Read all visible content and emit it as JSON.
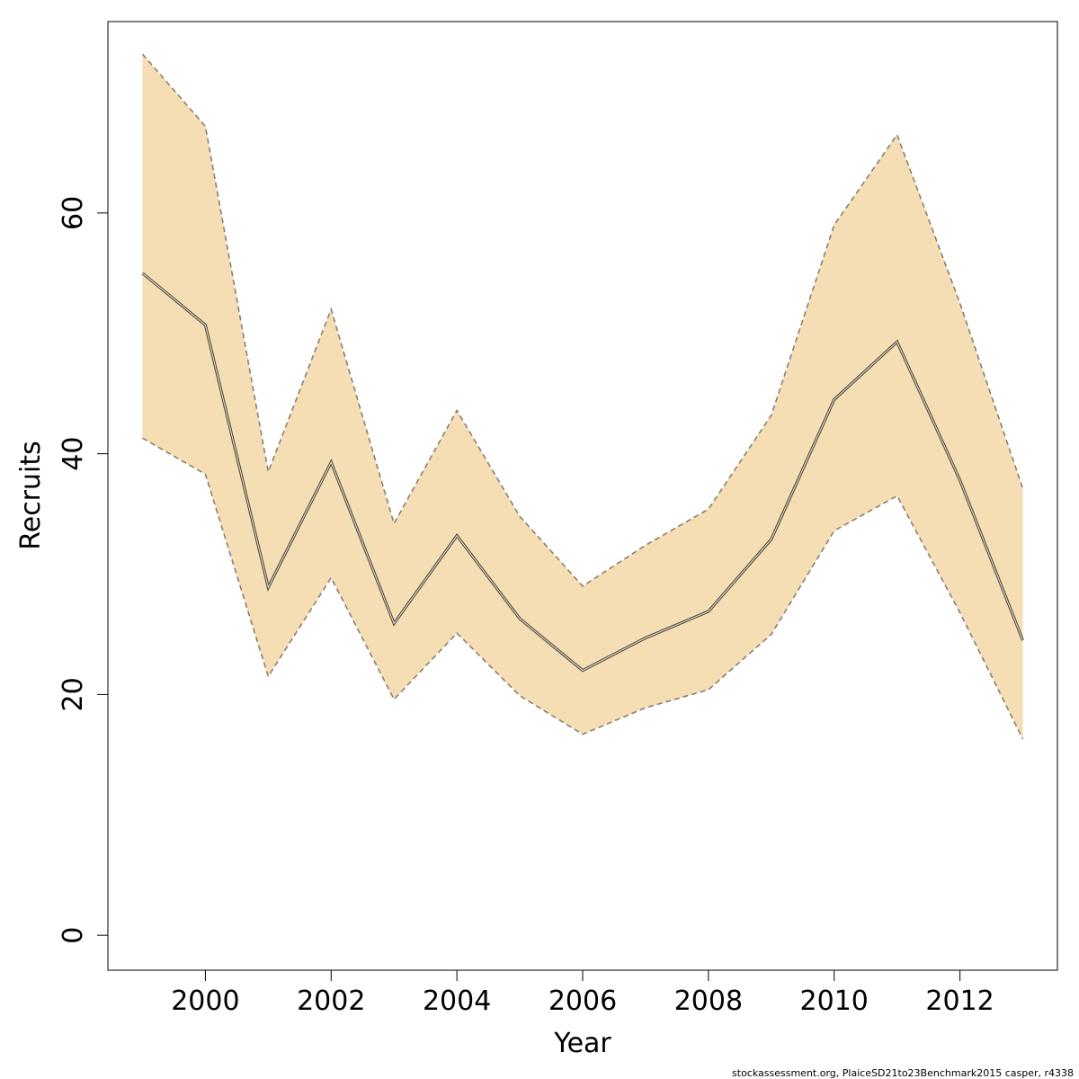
{
  "chart_data": {
    "type": "line",
    "title": "",
    "xlabel": "Year",
    "ylabel": "Recruits",
    "xlim": [
      1998.45,
      2013.55
    ],
    "ylim": [
      -2.9,
      75.9
    ],
    "x_ticks": [
      2000,
      2002,
      2004,
      2006,
      2008,
      2010,
      2012
    ],
    "y_ticks": [
      0,
      20,
      40,
      60
    ],
    "grid": false,
    "legend": "none",
    "x": [
      1999,
      2000,
      2001,
      2002,
      2003,
      2004,
      2005,
      2006,
      2007,
      2008,
      2009,
      2010,
      2011,
      2012,
      2013
    ],
    "series": [
      {
        "role": "estimate",
        "values": [
          55.0,
          50.7,
          28.9,
          39.3,
          25.9,
          33.2,
          26.3,
          22.0,
          24.7,
          26.9,
          32.9,
          44.5,
          49.3,
          37.8,
          24.5
        ]
      },
      {
        "role": "upper_bound",
        "values": [
          73.2,
          67.2,
          38.5,
          52.0,
          34.2,
          43.6,
          34.8,
          29.0,
          32.4,
          35.4,
          43.2,
          59.0,
          66.5,
          52.5,
          37.1
        ]
      },
      {
        "role": "lower_bound",
        "values": [
          41.3,
          38.3,
          21.5,
          29.7,
          19.6,
          25.1,
          19.9,
          16.7,
          18.9,
          20.4,
          25.0,
          33.6,
          36.5,
          26.8,
          16.3
        ]
      }
    ],
    "colors": {
      "band_fill": "#f5deb3",
      "band_edge": "#8c7f70",
      "line": "#4d4d4d",
      "axis": "#000000"
    }
  },
  "footer": "stockassessment.org, PlaiceSD21to23Benchmark2015  casper, r4338"
}
